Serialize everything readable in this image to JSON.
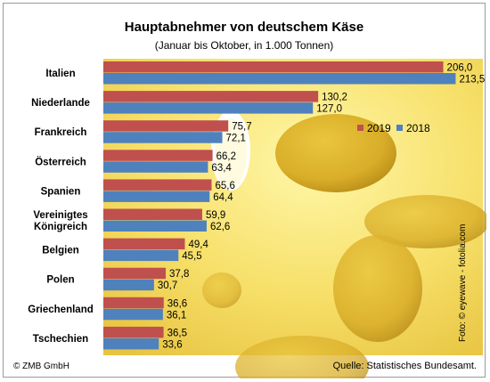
{
  "chart_data": {
    "type": "bar",
    "orientation": "horizontal",
    "title": "Hauptabnehmer von deutschem Käse",
    "subtitle": "(Januar bis Oktober, in 1.000 Tonnen)",
    "categories": [
      [
        "Italien"
      ],
      [
        "Niederlande"
      ],
      [
        "Frankreich"
      ],
      [
        "Österreich"
      ],
      [
        "Spanien"
      ],
      [
        "Vereinigtes",
        "Königreich"
      ],
      [
        "Belgien"
      ],
      [
        "Polen"
      ],
      [
        "Griechenland"
      ],
      [
        "Tschechien"
      ]
    ],
    "series": [
      {
        "name": "2019",
        "color": "#c0504d",
        "values": [
          206.0,
          130.2,
          75.7,
          66.2,
          65.6,
          59.9,
          49.4,
          37.8,
          36.6,
          36.5
        ],
        "labels": [
          "206,0",
          "130,2",
          "75,7",
          "66,2",
          "65,6",
          "59,9",
          "49,4",
          "37,8",
          "36,6",
          "36,5"
        ]
      },
      {
        "name": "2018",
        "color": "#4f81bd",
        "values": [
          213.5,
          127.0,
          72.1,
          63.4,
          64.4,
          62.6,
          45.5,
          30.7,
          36.1,
          33.6
        ],
        "labels": [
          "213,5",
          "127,0",
          "72,1",
          "63,4",
          "64,4",
          "62,6",
          "45,5",
          "30,7",
          "36,1",
          "33,6"
        ]
      }
    ],
    "xlim": [
      0,
      230
    ],
    "grid": false,
    "legend": "top-right"
  },
  "footer": {
    "copyright": "© ZMB GmbH",
    "source": "Quelle: Statistisches Bundesamt.",
    "photo_credit": "Foto: © eyewave - fotolia.com"
  }
}
